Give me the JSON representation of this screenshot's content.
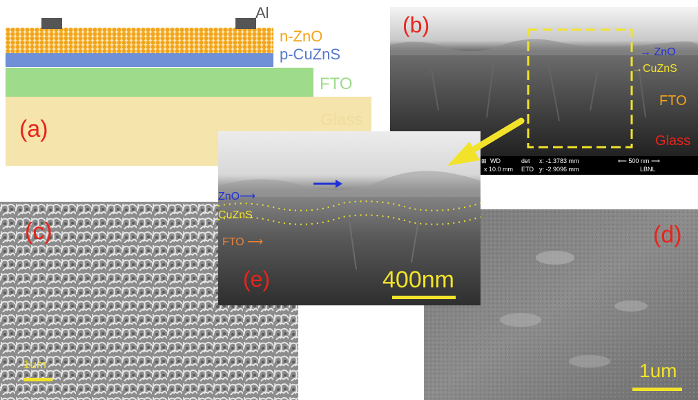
{
  "panel_a": {
    "label": "(a)",
    "layers": {
      "al": "Al",
      "zno": "n-ZnO",
      "cuzns": "p-CuZnS",
      "fto": "FTO",
      "glass": "Glass"
    },
    "colors": {
      "al": "#555555",
      "zno": "#f2a51a",
      "cuzns": "#6f8fd6",
      "fto": "#9edb8a",
      "glass": "#f5e4ab",
      "label": "#e8241b"
    }
  },
  "panel_b": {
    "label": "(b)",
    "layers": {
      "zno": "ZnO",
      "cuzns": "CuZnS",
      "fto": "FTO",
      "glass": "Glass"
    },
    "databar": {
      "wd_head": "WD",
      "wd_val": "10.0 mm",
      "det_head": "det",
      "det_val": "ETD",
      "x": "x: -1.3783 mm",
      "y": "y: -2.9096 mm",
      "scale": "500 nm",
      "lab": "LBNL"
    }
  },
  "panel_c": {
    "label": "(c)",
    "scale": "1um"
  },
  "panel_d": {
    "label": "(d)",
    "scale": "1um"
  },
  "panel_e": {
    "label": "(e)",
    "layers": {
      "zno": "ZnO",
      "cuzns": "CuZnS",
      "fto": "FTO"
    },
    "scale": "400nm"
  }
}
